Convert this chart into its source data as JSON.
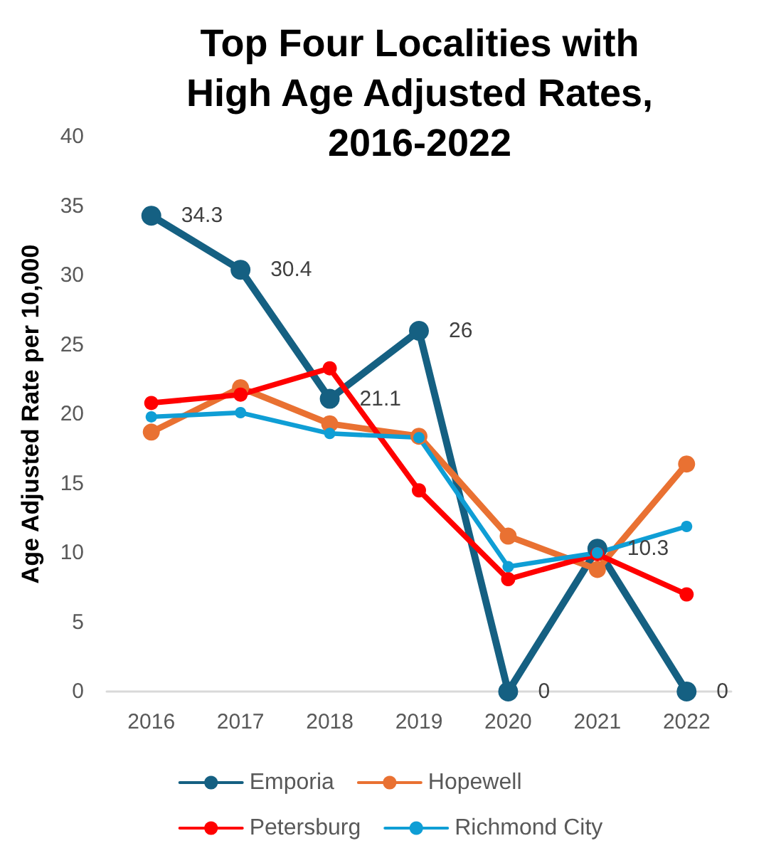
{
  "chart_data": {
    "type": "line",
    "title": "Top Four Localities with High Age Adjusted Rates, 2016-2022",
    "ylabel": "Age Adjusted Rate per 10,000",
    "categories": [
      "2016",
      "2017",
      "2018",
      "2019",
      "2020",
      "2021",
      "2022"
    ],
    "series": [
      {
        "name": "Emporia",
        "color": "#156082",
        "values": [
          34.3,
          30.4,
          21.1,
          26,
          0,
          10.3,
          0
        ],
        "value_labels": [
          "34.3",
          "30.4",
          "21.1",
          "26",
          "0",
          "10.3",
          "0"
        ]
      },
      {
        "name": "Hopewell",
        "color": "#e97132",
        "values": [
          18.7,
          21.9,
          19.3,
          18.4,
          11.2,
          8.8,
          16.4
        ]
      },
      {
        "name": "Petersburg",
        "color": "#ff0000",
        "values": [
          20.8,
          21.4,
          23.3,
          14.5,
          8.1,
          9.9,
          7.0
        ]
      },
      {
        "name": "Richmond City",
        "color": "#0f9ed5",
        "values": [
          19.8,
          20.1,
          18.6,
          18.3,
          9.0,
          10.0,
          11.9
        ]
      }
    ],
    "ylim": [
      0,
      40
    ],
    "yticks": [
      0,
      5,
      10,
      15,
      20,
      25,
      30,
      35,
      40
    ],
    "grid": false,
    "legend": "bottom",
    "marker": "circle",
    "line_style": "solid"
  }
}
